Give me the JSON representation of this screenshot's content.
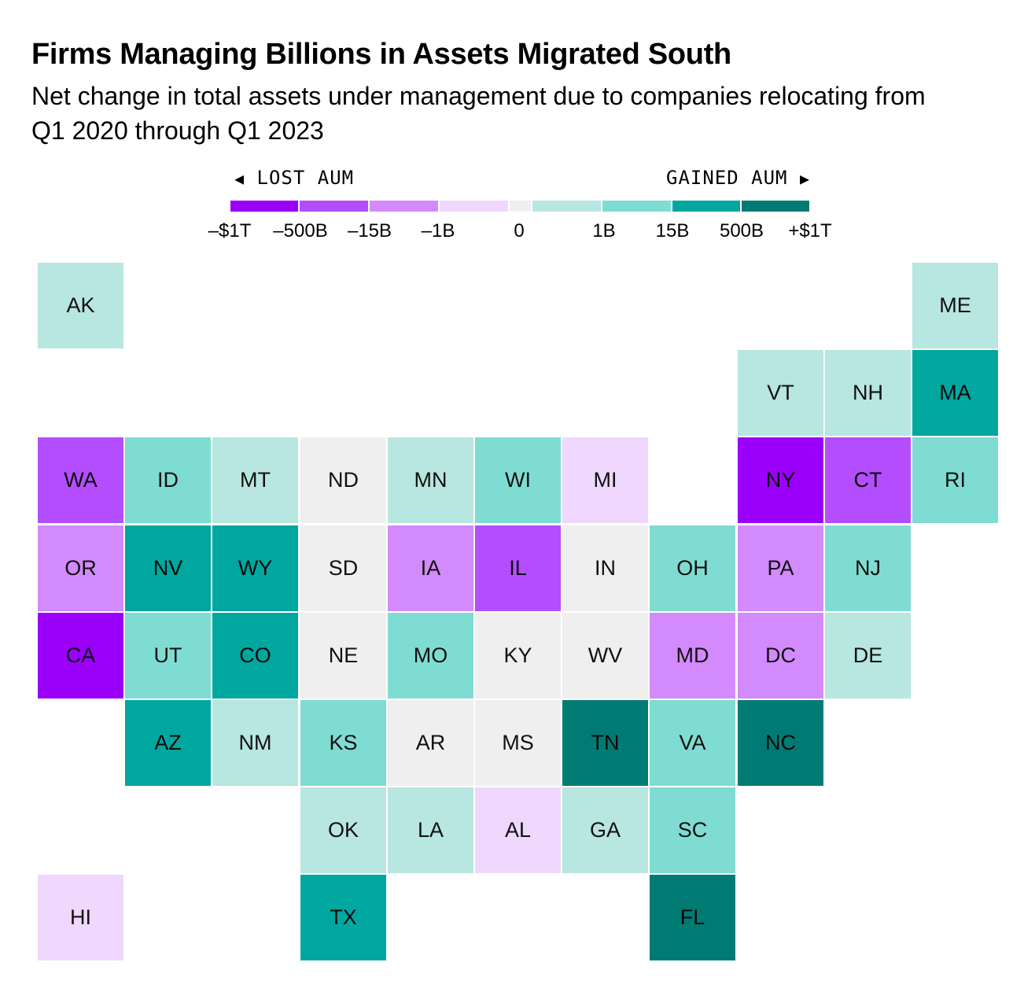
{
  "title": "Firms Managing Billions in Assets Migrated South",
  "subtitle": "Net change in total assets under management due to companies relocating from Q1 2020 through Q1 2023",
  "legend": {
    "left_label": "LOST AUM",
    "right_label": "GAINED AUM",
    "left_arrow": "◀",
    "right_arrow": "▶",
    "ticks": [
      "–$1T",
      "–500B",
      "–15B",
      "–1B",
      "0",
      "1B",
      "15B",
      "500B",
      "+$1T"
    ],
    "bins": [
      {
        "key": "loss_4",
        "color": "#9b00fa",
        "from": "–$1T",
        "to": "–500B"
      },
      {
        "key": "loss_3",
        "color": "#b44dfd",
        "from": "–500B",
        "to": "–15B"
      },
      {
        "key": "loss_2",
        "color": "#d38afd",
        "from": "–15B",
        "to": "–1B"
      },
      {
        "key": "loss_1",
        "color": "#efd7fe",
        "from": "–1B",
        "to": "0"
      },
      {
        "key": "zero",
        "color": "#efefef",
        "from": "0",
        "to": "0"
      },
      {
        "key": "gain_1",
        "color": "#b8e6e0",
        "from": "0",
        "to": "1B"
      },
      {
        "key": "gain_2",
        "color": "#7fdcd2",
        "from": "1B",
        "to": "15B"
      },
      {
        "key": "gain_3",
        "color": "#00a79e",
        "from": "15B",
        "to": "500B"
      },
      {
        "key": "gain_4",
        "color": "#007b73",
        "from": "500B",
        "to": "+$1T"
      }
    ]
  },
  "chart_data": {
    "type": "tile-map",
    "scale": "binned diverging",
    "states": [
      {
        "abbr": "AK",
        "row": 0,
        "col": 0,
        "bin": "gain_1"
      },
      {
        "abbr": "ME",
        "row": 0,
        "col": 10,
        "bin": "gain_1"
      },
      {
        "abbr": "VT",
        "row": 1,
        "col": 8,
        "bin": "gain_1"
      },
      {
        "abbr": "NH",
        "row": 1,
        "col": 9,
        "bin": "gain_1"
      },
      {
        "abbr": "MA",
        "row": 1,
        "col": 10,
        "bin": "gain_3"
      },
      {
        "abbr": "WA",
        "row": 2,
        "col": 0,
        "bin": "loss_3"
      },
      {
        "abbr": "ID",
        "row": 2,
        "col": 1,
        "bin": "gain_2"
      },
      {
        "abbr": "MT",
        "row": 2,
        "col": 2,
        "bin": "gain_1"
      },
      {
        "abbr": "ND",
        "row": 2,
        "col": 3,
        "bin": "zero"
      },
      {
        "abbr": "MN",
        "row": 2,
        "col": 4,
        "bin": "gain_1"
      },
      {
        "abbr": "WI",
        "row": 2,
        "col": 5,
        "bin": "gain_2"
      },
      {
        "abbr": "MI",
        "row": 2,
        "col": 6,
        "bin": "loss_1"
      },
      {
        "abbr": "NY",
        "row": 2,
        "col": 8,
        "bin": "loss_4"
      },
      {
        "abbr": "CT",
        "row": 2,
        "col": 9,
        "bin": "loss_3"
      },
      {
        "abbr": "RI",
        "row": 2,
        "col": 10,
        "bin": "gain_2"
      },
      {
        "abbr": "OR",
        "row": 3,
        "col": 0,
        "bin": "loss_2"
      },
      {
        "abbr": "NV",
        "row": 3,
        "col": 1,
        "bin": "gain_3"
      },
      {
        "abbr": "WY",
        "row": 3,
        "col": 2,
        "bin": "gain_3"
      },
      {
        "abbr": "SD",
        "row": 3,
        "col": 3,
        "bin": "zero"
      },
      {
        "abbr": "IA",
        "row": 3,
        "col": 4,
        "bin": "loss_2"
      },
      {
        "abbr": "IL",
        "row": 3,
        "col": 5,
        "bin": "loss_3"
      },
      {
        "abbr": "IN",
        "row": 3,
        "col": 6,
        "bin": "zero"
      },
      {
        "abbr": "OH",
        "row": 3,
        "col": 7,
        "bin": "gain_2"
      },
      {
        "abbr": "PA",
        "row": 3,
        "col": 8,
        "bin": "loss_2"
      },
      {
        "abbr": "NJ",
        "row": 3,
        "col": 9,
        "bin": "gain_2"
      },
      {
        "abbr": "CA",
        "row": 4,
        "col": 0,
        "bin": "loss_4"
      },
      {
        "abbr": "UT",
        "row": 4,
        "col": 1,
        "bin": "gain_2"
      },
      {
        "abbr": "CO",
        "row": 4,
        "col": 2,
        "bin": "gain_3"
      },
      {
        "abbr": "NE",
        "row": 4,
        "col": 3,
        "bin": "zero"
      },
      {
        "abbr": "MO",
        "row": 4,
        "col": 4,
        "bin": "gain_2"
      },
      {
        "abbr": "KY",
        "row": 4,
        "col": 5,
        "bin": "zero"
      },
      {
        "abbr": "WV",
        "row": 4,
        "col": 6,
        "bin": "zero"
      },
      {
        "abbr": "MD",
        "row": 4,
        "col": 7,
        "bin": "loss_2"
      },
      {
        "abbr": "DC",
        "row": 4,
        "col": 8,
        "bin": "loss_2"
      },
      {
        "abbr": "DE",
        "row": 4,
        "col": 9,
        "bin": "gain_1"
      },
      {
        "abbr": "AZ",
        "row": 5,
        "col": 1,
        "bin": "gain_3"
      },
      {
        "abbr": "NM",
        "row": 5,
        "col": 2,
        "bin": "gain_1"
      },
      {
        "abbr": "KS",
        "row": 5,
        "col": 3,
        "bin": "gain_2"
      },
      {
        "abbr": "AR",
        "row": 5,
        "col": 4,
        "bin": "zero"
      },
      {
        "abbr": "MS",
        "row": 5,
        "col": 5,
        "bin": "zero"
      },
      {
        "abbr": "TN",
        "row": 5,
        "col": 6,
        "bin": "gain_4"
      },
      {
        "abbr": "VA",
        "row": 5,
        "col": 7,
        "bin": "gain_2"
      },
      {
        "abbr": "NC",
        "row": 5,
        "col": 8,
        "bin": "gain_4"
      },
      {
        "abbr": "OK",
        "row": 6,
        "col": 3,
        "bin": "gain_1"
      },
      {
        "abbr": "LA",
        "row": 6,
        "col": 4,
        "bin": "gain_1"
      },
      {
        "abbr": "AL",
        "row": 6,
        "col": 5,
        "bin": "loss_1"
      },
      {
        "abbr": "GA",
        "row": 6,
        "col": 6,
        "bin": "gain_1"
      },
      {
        "abbr": "SC",
        "row": 6,
        "col": 7,
        "bin": "gain_2"
      },
      {
        "abbr": "HI",
        "row": 7,
        "col": 0,
        "bin": "loss_1"
      },
      {
        "abbr": "TX",
        "row": 7,
        "col": 3,
        "bin": "gain_3"
      },
      {
        "abbr": "FL",
        "row": 7,
        "col": 7,
        "bin": "gain_4"
      }
    ]
  }
}
